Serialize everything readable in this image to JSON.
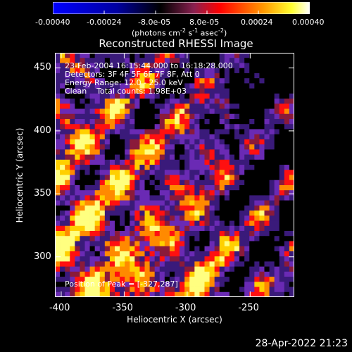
{
  "colorbar": {
    "tick_labels": [
      "-0.00040",
      "-0.00024",
      "-8.0e-05",
      "8.0e-05",
      "0.00024",
      "0.00040"
    ],
    "range": [
      -0.0004,
      0.0004
    ],
    "units_main": "(photons cm",
    "units_sup1": "-2",
    "units_mid": " s",
    "units_sup2": "-1",
    "units_mid2": " asec",
    "units_sup3": "-2",
    "units_end": ")"
  },
  "chart_data": {
    "type": "heatmap",
    "title": "Reconstructed RHESSI Image",
    "xlabel": "Heliocentric X (arcsec)",
    "ylabel": "Heliocentric Y (arcsec)",
    "xlim": [
      -405,
      -215
    ],
    "ylim": [
      268,
      462
    ],
    "x_ticks": [
      -400,
      -350,
      -300,
      -250
    ],
    "y_ticks": [
      300,
      350,
      400,
      450
    ],
    "annotations": [
      "23-Feb-2004 16:15:44.000 to 16:18:28.000",
      "Detectors: 3F 4F 5F 6F 7F 8F, Att 0",
      "Energy Range: 12.0 - 25.0 keV",
      "Clean    Total counts: 1.98E+03"
    ],
    "peak_label": "Position of Peak = [-327,287]",
    "peak_position": [
      -327,
      287
    ],
    "total_counts": 1980,
    "energy_range_kev": [
      12.0,
      25.0
    ],
    "colormap": [
      "#0000ff",
      "#0a0a90",
      "#000000",
      "#3a1a7a",
      "#7a30c0",
      "#ff0000",
      "#ff8000",
      "#ffff00",
      "#ffffff"
    ]
  },
  "footer": {
    "date": "28-Apr-2022 21:23"
  }
}
